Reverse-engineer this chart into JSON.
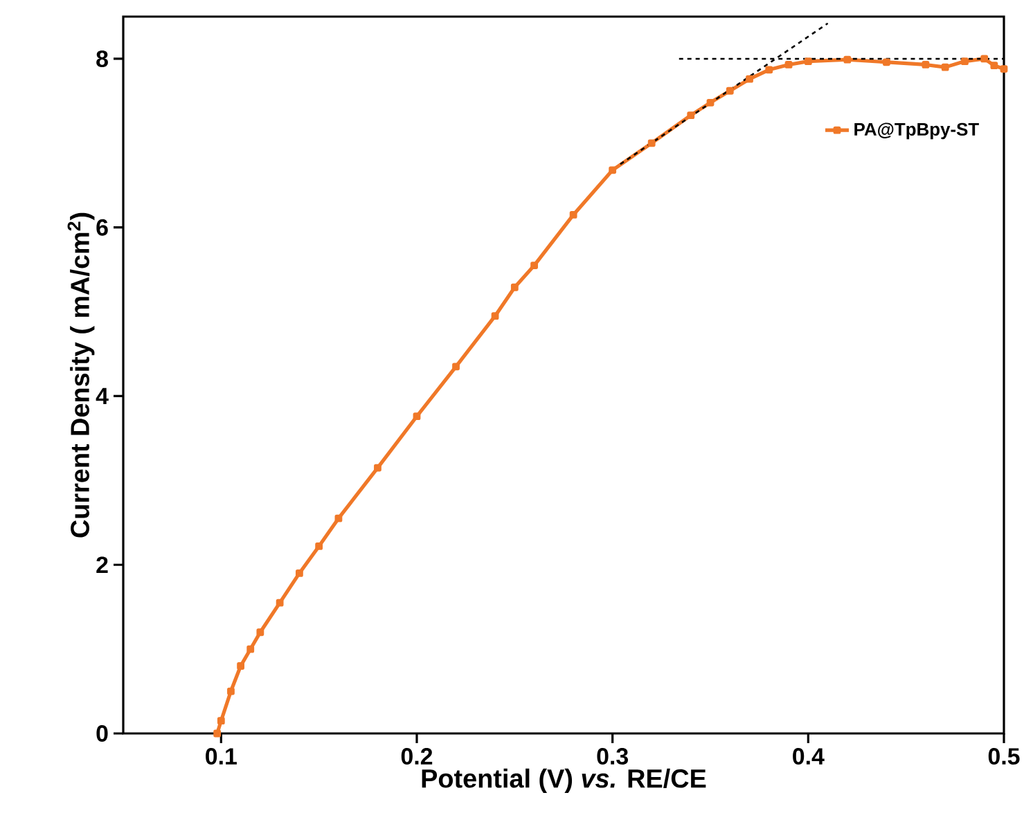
{
  "chart_data": {
    "type": "line",
    "xlabel": "Potential (V) *vs.* RE/CE",
    "ylabel": "Current Density ( mA/cm$^{2}$)",
    "xlim": [
      0.05,
      0.5
    ],
    "ylim": [
      0,
      8.5
    ],
    "xticks": [
      0.1,
      0.2,
      0.3,
      0.4,
      0.5
    ],
    "yticks": [
      0,
      2,
      4,
      6,
      8
    ],
    "legend": "top right",
    "grid": false,
    "series": [
      {
        "name": "PA@TpBpy-ST",
        "color": "#f07828",
        "marker": "square",
        "line_style": "solid",
        "x": [
          0.098,
          0.1,
          0.105,
          0.11,
          0.115,
          0.12,
          0.13,
          0.14,
          0.15,
          0.16,
          0.18,
          0.2,
          0.22,
          0.24,
          0.25,
          0.26,
          0.28,
          0.3,
          0.32,
          0.34,
          0.35,
          0.36,
          0.37,
          0.38,
          0.39,
          0.4,
          0.42,
          0.44,
          0.46,
          0.47,
          0.48,
          0.49,
          0.495,
          0.5
        ],
        "values": [
          0,
          0.15,
          0.5,
          0.8,
          1.0,
          1.2,
          1.55,
          1.9,
          2.22,
          2.55,
          3.15,
          3.76,
          4.35,
          4.95,
          5.29,
          5.55,
          6.15,
          6.68,
          7.0,
          7.33,
          7.48,
          7.62,
          7.76,
          7.87,
          7.93,
          7.97,
          7.99,
          7.96,
          7.93,
          7.9,
          7.97,
          8.0,
          7.92,
          7.88
        ]
      },
      {
        "type": "line",
        "color": "#000000",
        "marker": "none",
        "line_style": "dashed",
        "x": [
          0.304,
          0.41
        ],
        "values": [
          6.75,
          8.42
        ]
      },
      {
        "type": "line",
        "color": "#000000",
        "marker": "none",
        "line_style": "dashed",
        "x": [
          0.334,
          0.5
        ],
        "values": [
          8.0,
          8.0
        ]
      }
    ]
  }
}
